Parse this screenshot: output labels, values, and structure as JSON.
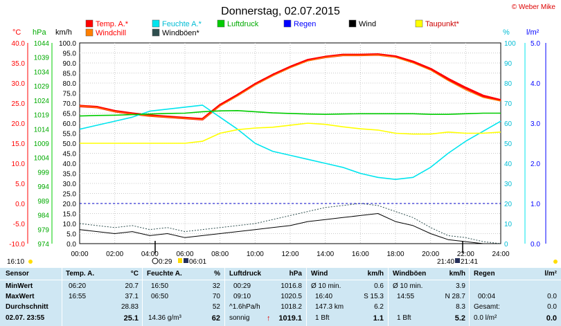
{
  "header": {
    "title": "Donnerstag, 02.07.2015",
    "copyright": "© Weber Mike"
  },
  "legend": [
    {
      "label": "Temp. A.*",
      "color": "#ff0000"
    },
    {
      "label": "Feuchte A.*",
      "color": "#00e5ee"
    },
    {
      "label": "Luftdruck",
      "color": "#00cc00"
    },
    {
      "label": "Regen",
      "color": "#0000ff"
    },
    {
      "label": "Wind",
      "color": "#000000"
    },
    {
      "label": "Taupunkt*",
      "color": "#ffff00"
    },
    {
      "label": "Windchill",
      "color": "#ff7f00"
    },
    {
      "label": "Windböen*",
      "color": "#2f4f4f"
    }
  ],
  "axis_units": {
    "celsius": "°C",
    "hpa": "hPa",
    "kmh": "km/h",
    "percent": "%",
    "rain": "l/m²"
  },
  "below_chart": {
    "left_time": "16:10",
    "moon_time": "0:29",
    "sunrise": "06:01",
    "moonset": "21:40",
    "sunset": "21:41"
  },
  "chart_data": {
    "type": "line",
    "x_ticks": [
      "00:00",
      "02:00",
      "04:00",
      "06:00",
      "08:00",
      "10:00",
      "12:00",
      "14:00",
      "16:00",
      "18:00",
      "20:00",
      "22:00",
      "24:00"
    ],
    "kmh_ticks": [
      "0.0",
      "5.0",
      "10.0",
      "15.0",
      "20.0",
      "25.0",
      "30.0",
      "35.0",
      "40.0",
      "45.0",
      "50.0",
      "55.0",
      "60.0",
      "65.0",
      "70.0",
      "75.0",
      "80.0",
      "85.0",
      "90.0",
      "95.0",
      "100.0"
    ],
    "celsius_ticks": [
      "-10.0",
      "-5.0",
      "0.0",
      "5.0",
      "10.0",
      "15.0",
      "20.0",
      "25.0",
      "30.0",
      "35.0",
      "40.0"
    ],
    "hpa_ticks": [
      "974",
      "979",
      "984",
      "989",
      "994",
      "999",
      "1004",
      "1009",
      "1014",
      "1019",
      "1024",
      "1029",
      "1034",
      "1039",
      "1044"
    ],
    "percent_ticks": [
      "0",
      "10",
      "20",
      "30",
      "40",
      "50",
      "60",
      "70",
      "80",
      "90",
      "100"
    ],
    "rain_ticks": [
      "0.0",
      "1.0",
      "2.0",
      "3.0",
      "4.0",
      "5.0"
    ],
    "ylim_kmh": [
      0,
      100
    ],
    "series": [
      {
        "name": "Temp. A.*",
        "color": "#ff0000",
        "axis": "celsius",
        "width": 3.5,
        "x": [
          0,
          1,
          2,
          3,
          4,
          5,
          6,
          7,
          8,
          9,
          10,
          11,
          12,
          13,
          14,
          15,
          16,
          17,
          18,
          19,
          20,
          21,
          22,
          23,
          24
        ],
        "y": [
          24.3,
          24.0,
          23.0,
          22.4,
          21.9,
          21.6,
          21.3,
          21.0,
          24.5,
          27.0,
          29.7,
          32.0,
          34.0,
          35.7,
          36.5,
          37.0,
          37.0,
          37.1,
          36.6,
          35.3,
          33.5,
          31.0,
          28.8,
          26.8,
          25.7
        ]
      },
      {
        "name": "Windchill",
        "color": "#ff7f00",
        "axis": "celsius",
        "width": 1.2,
        "x": [
          0,
          1,
          2,
          3,
          4,
          5,
          6,
          7,
          8,
          9,
          10,
          11,
          12,
          13,
          14,
          15,
          16,
          17,
          18,
          19,
          20,
          21,
          22,
          23,
          24
        ],
        "y": [
          24.3,
          23.9,
          22.9,
          22.3,
          21.8,
          21.5,
          21.2,
          20.9,
          24.3,
          26.8,
          29.5,
          31.8,
          33.8,
          35.5,
          36.4,
          36.9,
          36.9,
          37.0,
          36.4,
          35.0,
          33.2,
          30.6,
          28.3,
          26.4,
          25.5
        ]
      },
      {
        "name": "Feuchte A.*",
        "color": "#00e5ee",
        "axis": "percent",
        "width": 1.6,
        "x": [
          0,
          1,
          2,
          3,
          4,
          5,
          6,
          7,
          8,
          9,
          10,
          11,
          12,
          13,
          14,
          15,
          16,
          17,
          18,
          19,
          20,
          21,
          22,
          23,
          24
        ],
        "y": [
          57,
          59,
          61,
          63,
          66,
          67,
          68,
          69,
          63,
          57,
          50,
          46,
          44,
          42,
          40,
          38,
          35,
          33,
          32,
          33,
          38,
          45,
          51,
          56,
          61
        ]
      },
      {
        "name": "Luftdruck",
        "color": "#00cc00",
        "axis": "hpa",
        "width": 1.6,
        "x": [
          0,
          1,
          2,
          3,
          4,
          5,
          6,
          7,
          8,
          9,
          10,
          11,
          12,
          13,
          14,
          15,
          16,
          17,
          18,
          19,
          20,
          21,
          22,
          23,
          24
        ],
        "y": [
          1018.5,
          1018.7,
          1018.8,
          1019.0,
          1019.2,
          1019.4,
          1019.5,
          1020.0,
          1020.3,
          1020.4,
          1020.0,
          1019.6,
          1019.4,
          1019.2,
          1019.1,
          1019.2,
          1019.3,
          1019.3,
          1019.3,
          1019.3,
          1019.1,
          1019.1,
          1019.3,
          1019.5,
          1019.5
        ]
      },
      {
        "name": "Taupunkt*",
        "color": "#ffff00",
        "axis": "celsius",
        "width": 1.6,
        "x": [
          0,
          1,
          2,
          3,
          4,
          5,
          6,
          7,
          8,
          9,
          10,
          11,
          12,
          13,
          14,
          15,
          16,
          17,
          18,
          19,
          20,
          21,
          22,
          23,
          24
        ],
        "y": [
          15.0,
          15.0,
          15.0,
          15.0,
          15.0,
          15.0,
          15.0,
          15.5,
          17.5,
          18.4,
          18.8,
          19.0,
          19.5,
          20.0,
          19.7,
          19.1,
          18.6,
          18.3,
          17.5,
          17.3,
          17.3,
          17.8,
          17.5,
          17.5,
          17.8
        ]
      },
      {
        "name": "Wind",
        "color": "#000000",
        "axis": "kmh",
        "width": 1,
        "x": [
          0,
          1,
          2,
          3,
          4,
          5,
          6,
          7,
          8,
          9,
          10,
          11,
          12,
          13,
          14,
          15,
          16,
          17,
          18,
          19,
          20,
          21,
          22,
          23,
          24
        ],
        "y": [
          7,
          6,
          5,
          6,
          4,
          5,
          3,
          4,
          5,
          6,
          7,
          8,
          9,
          11,
          12,
          13,
          14,
          15,
          11,
          9,
          5,
          2,
          1,
          0,
          0
        ]
      },
      {
        "name": "Windböen*",
        "color": "#2f4f4f",
        "axis": "kmh",
        "width": 1,
        "x": [
          0,
          1,
          2,
          3,
          4,
          5,
          6,
          7,
          8,
          9,
          10,
          11,
          12,
          13,
          14,
          15,
          16,
          17,
          18,
          19,
          20,
          21,
          22,
          23,
          24
        ],
        "y": [
          10,
          9,
          8,
          9,
          7,
          8,
          6,
          7,
          8,
          9,
          10,
          12,
          14,
          16,
          18,
          19,
          20,
          19,
          16,
          13,
          8,
          4,
          3,
          1,
          0
        ]
      }
    ]
  },
  "table": {
    "headers": {
      "sensor": "Sensor",
      "temp": "Temp. A.",
      "temp_unit": "°C",
      "hum": "Feuchte A.",
      "hum_unit": "%",
      "press": "Luftdruck",
      "press_unit": "hPa",
      "wind": "Wind",
      "wind_unit": "km/h",
      "gust": "Windböen",
      "gust_unit": "km/h",
      "rain": "Regen",
      "rain_unit": "l/m²"
    },
    "rows": [
      {
        "label": "MinWert",
        "temp_time": "06:20",
        "temp_val": "20.7",
        "hum_time": "16:50",
        "hum_val": "32",
        "press_time": "00:29",
        "press_val": "1016.8",
        "wind_time": "Ø 10 min.",
        "wind_val": "0.6",
        "gust_time": "Ø 10 min.",
        "gust_val": "3.9",
        "rain_time": "",
        "rain_val": ""
      },
      {
        "label": "MaxWert",
        "temp_time": "16:55",
        "temp_val": "37.1",
        "hum_time": "06:50",
        "hum_val": "70",
        "press_time": "09:10",
        "press_val": "1020.5",
        "wind_time": "16:40",
        "wind_mid": "S 15.3",
        "wind_val": "",
        "gust_time": "14:55",
        "gust_mid": "N 28.7",
        "gust_val": "",
        "rain_time": "00:04",
        "rain_val": "0.0"
      },
      {
        "label": "Durchschnitt",
        "temp_time": "",
        "temp_val": "28.83",
        "hum_time": "",
        "hum_val": "52",
        "press_time": "^1.6hPa/h",
        "press_val": "1018.2",
        "wind_time": "147.3 km",
        "wind_val": "6.2",
        "gust_time": "",
        "gust_val": "8.3",
        "rain_time": "Gesamt:",
        "rain_val": "0.0"
      },
      {
        "label": "02.07. 23:55",
        "temp_time": "",
        "temp_val": "25.1",
        "hum_time": "14.36 g/m³",
        "hum_val": "62",
        "press_time": "sonnig",
        "press_arrow": "↑",
        "press_val": "1019.1",
        "wind_time": "1 Bft",
        "wind_val": "1.1",
        "gust_time": "1 Bft",
        "gust_val": "5.2",
        "rain_time": "0.0 l/m²",
        "rain_val": "0.0"
      }
    ]
  }
}
